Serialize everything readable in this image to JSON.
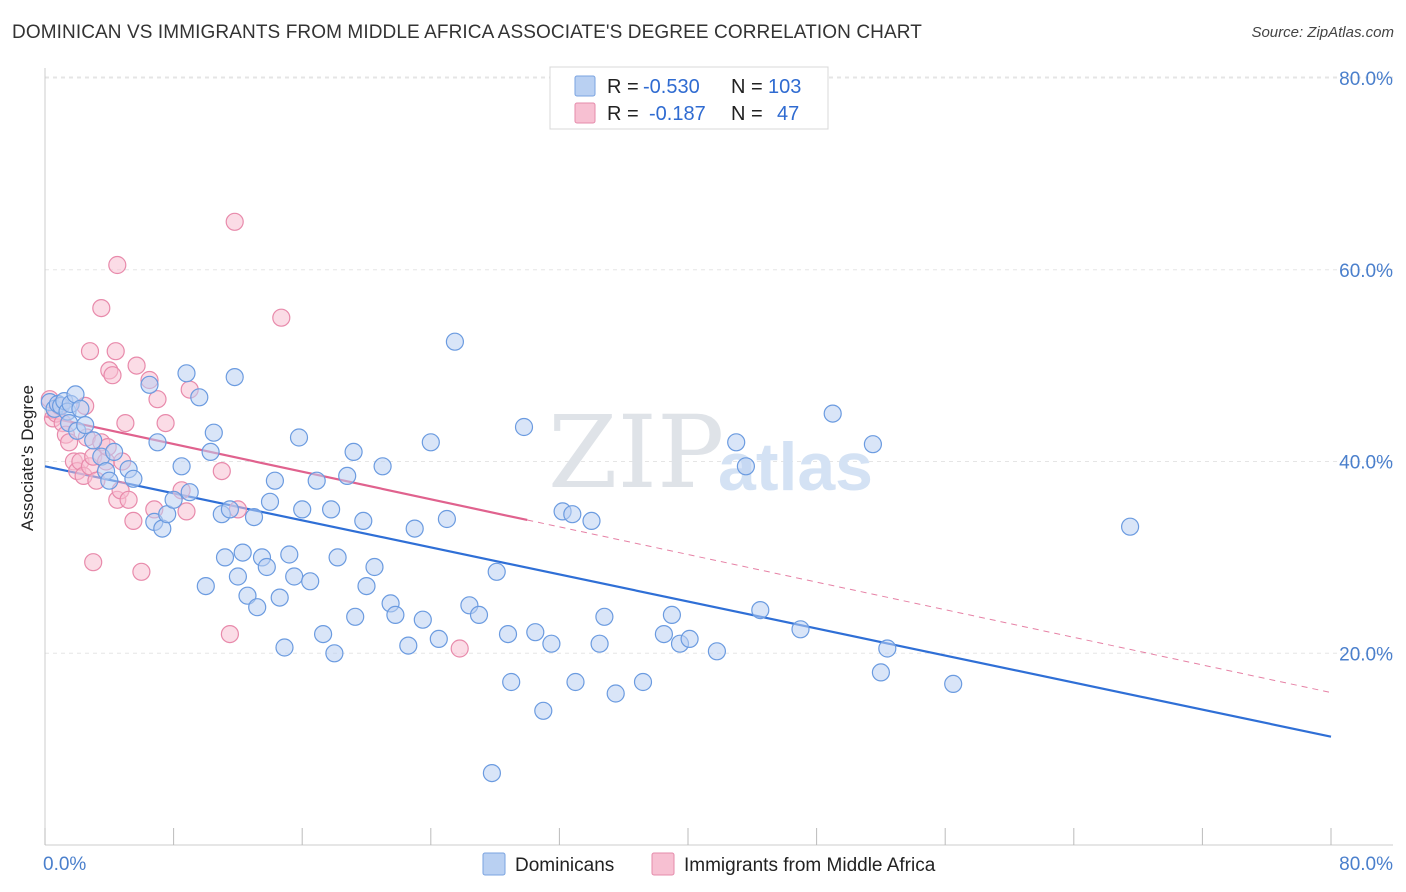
{
  "title": "DOMINICAN VS IMMIGRANTS FROM MIDDLE AFRICA ASSOCIATE'S DEGREE CORRELATION CHART",
  "source": "Source: ZipAtlas.com",
  "watermark": {
    "zip": "ZIP",
    "atlas": "atlas"
  },
  "colors": {
    "blue": "#2f6fd6",
    "blue_fill": "#b9d0f2",
    "pink": "#e0628e",
    "pink_fill": "#f7c0d2",
    "tick_text": "#4a7fcc",
    "grid": "#e5e5e5"
  },
  "legend_top": {
    "rows": [
      {
        "r_label": "R =",
        "r_value": "-0.530",
        "n_label": "N =",
        "n_value": "103"
      },
      {
        "r_label": "R =",
        "r_value": "-0.187",
        "n_label": "N =",
        "n_value": "47"
      }
    ]
  },
  "legend_bottom": [
    "Dominicans",
    "Immigrants from Middle Africa"
  ],
  "chart_data": {
    "type": "scatter",
    "title": "DOMINICAN VS IMMIGRANTS FROM MIDDLE AFRICA ASSOCIATE'S DEGREE CORRELATION CHART",
    "xlabel": "",
    "ylabel": "Associate's Degree",
    "xlim": [
      0,
      80
    ],
    "ylim": [
      0,
      80
    ],
    "x_tick_labels": [
      "0.0%",
      "80.0%"
    ],
    "y_tick_labels": [
      "20.0%",
      "40.0%",
      "60.0%",
      "80.0%"
    ],
    "y_ticks": [
      20,
      40,
      60,
      80
    ],
    "grid": true,
    "legend_position": "top-center",
    "series": [
      {
        "name": "Dominicans",
        "color": "#2f6fd6",
        "R": -0.53,
        "N": 103,
        "trend": {
          "x": [
            0,
            80
          ],
          "y": [
            39.5,
            11.3
          ],
          "style": "solid"
        },
        "points": [
          [
            0.3,
            46.2
          ],
          [
            0.6,
            45.5
          ],
          [
            0.8,
            46.0
          ],
          [
            1.0,
            45.8
          ],
          [
            1.2,
            46.3
          ],
          [
            1.4,
            45.2
          ],
          [
            1.6,
            46.0
          ],
          [
            1.9,
            47.0
          ],
          [
            2.2,
            45.5
          ],
          [
            1.5,
            44.0
          ],
          [
            2.0,
            43.2
          ],
          [
            2.5,
            43.8
          ],
          [
            3.0,
            42.2
          ],
          [
            3.5,
            40.5
          ],
          [
            3.8,
            39.0
          ],
          [
            4.0,
            38.0
          ],
          [
            4.3,
            41.0
          ],
          [
            5.2,
            39.2
          ],
          [
            5.5,
            38.2
          ],
          [
            6.5,
            48.0
          ],
          [
            6.8,
            33.7
          ],
          [
            7.0,
            42.0
          ],
          [
            7.3,
            33.0
          ],
          [
            7.6,
            34.5
          ],
          [
            8.0,
            36.0
          ],
          [
            8.5,
            39.5
          ],
          [
            8.8,
            49.2
          ],
          [
            9.0,
            36.8
          ],
          [
            9.6,
            46.7
          ],
          [
            10.3,
            41.0
          ],
          [
            10.5,
            43.0
          ],
          [
            10.0,
            27.0
          ],
          [
            11.0,
            34.5
          ],
          [
            11.2,
            30.0
          ],
          [
            11.5,
            35.0
          ],
          [
            11.8,
            48.8
          ],
          [
            12.0,
            28.0
          ],
          [
            12.3,
            30.5
          ],
          [
            12.6,
            26.0
          ],
          [
            13.0,
            34.2
          ],
          [
            13.2,
            24.8
          ],
          [
            13.5,
            30.0
          ],
          [
            13.8,
            29.0
          ],
          [
            14.0,
            35.8
          ],
          [
            14.3,
            38.0
          ],
          [
            14.6,
            25.8
          ],
          [
            14.9,
            20.6
          ],
          [
            15.2,
            30.3
          ],
          [
            15.5,
            28.0
          ],
          [
            15.8,
            42.5
          ],
          [
            16.0,
            35.0
          ],
          [
            16.5,
            27.5
          ],
          [
            16.9,
            38.0
          ],
          [
            17.3,
            22.0
          ],
          [
            17.8,
            35.0
          ],
          [
            18.0,
            20.0
          ],
          [
            18.2,
            30.0
          ],
          [
            18.8,
            38.5
          ],
          [
            19.2,
            41.0
          ],
          [
            19.3,
            23.8
          ],
          [
            19.8,
            33.8
          ],
          [
            20.0,
            27.0
          ],
          [
            20.5,
            29.0
          ],
          [
            21.0,
            39.5
          ],
          [
            21.5,
            25.2
          ],
          [
            21.8,
            24.0
          ],
          [
            22.6,
            20.8
          ],
          [
            23.0,
            33.0
          ],
          [
            23.5,
            23.5
          ],
          [
            24.0,
            42.0
          ],
          [
            24.5,
            21.5
          ],
          [
            25.0,
            34.0
          ],
          [
            25.5,
            52.5
          ],
          [
            26.4,
            25.0
          ],
          [
            27.0,
            24.0
          ],
          [
            27.8,
            7.5
          ],
          [
            28.1,
            28.5
          ],
          [
            28.8,
            22.0
          ],
          [
            29.0,
            17.0
          ],
          [
            29.8,
            43.6
          ],
          [
            30.5,
            22.2
          ],
          [
            31.0,
            14.0
          ],
          [
            31.5,
            21.0
          ],
          [
            32.2,
            34.8
          ],
          [
            32.8,
            34.5
          ],
          [
            33.0,
            17.0
          ],
          [
            34.0,
            33.8
          ],
          [
            34.5,
            21.0
          ],
          [
            34.8,
            23.8
          ],
          [
            35.5,
            15.8
          ],
          [
            37.2,
            17.0
          ],
          [
            38.5,
            22.0
          ],
          [
            39.0,
            24.0
          ],
          [
            39.5,
            21.0
          ],
          [
            40.1,
            21.5
          ],
          [
            41.8,
            20.2
          ],
          [
            43.0,
            42.0
          ],
          [
            43.6,
            39.5
          ],
          [
            44.5,
            24.5
          ],
          [
            47.0,
            22.5
          ],
          [
            49.0,
            45.0
          ],
          [
            51.5,
            41.8
          ],
          [
            52.0,
            18.0
          ],
          [
            52.4,
            20.5
          ],
          [
            56.5,
            16.8
          ],
          [
            67.5,
            33.2
          ]
        ]
      },
      {
        "name": "Immigrants from Middle Africa",
        "color": "#e0628e",
        "R": -0.187,
        "N": 47,
        "trend": {
          "x": [
            0,
            80
          ],
          "y": [
            44.7,
            15.9
          ],
          "style": "solid-then-dashed",
          "solid_until_x": 30
        },
        "points": [
          [
            0.3,
            46.5
          ],
          [
            0.5,
            44.5
          ],
          [
            0.7,
            45.0
          ],
          [
            0.9,
            45.8
          ],
          [
            1.1,
            44.0
          ],
          [
            1.3,
            42.8
          ],
          [
            1.5,
            42.0
          ],
          [
            1.8,
            40.0
          ],
          [
            2.0,
            39.0
          ],
          [
            2.2,
            40.0
          ],
          [
            2.4,
            38.5
          ],
          [
            2.5,
            45.8
          ],
          [
            2.6,
            42.5
          ],
          [
            2.8,
            39.5
          ],
          [
            3.0,
            40.5
          ],
          [
            2.8,
            51.5
          ],
          [
            3.2,
            38.0
          ],
          [
            3.5,
            42.0
          ],
          [
            3.8,
            40.0
          ],
          [
            3.9,
            41.5
          ],
          [
            4.0,
            49.5
          ],
          [
            4.2,
            49.0
          ],
          [
            4.4,
            51.5
          ],
          [
            4.5,
            36.0
          ],
          [
            4.7,
            37.0
          ],
          [
            4.8,
            40.0
          ],
          [
            5.0,
            44.0
          ],
          [
            5.2,
            36.0
          ],
          [
            5.5,
            33.8
          ],
          [
            5.7,
            50.0
          ],
          [
            6.0,
            28.5
          ],
          [
            6.5,
            48.5
          ],
          [
            7.0,
            46.5
          ],
          [
            7.5,
            44.0
          ],
          [
            3.5,
            56.0
          ],
          [
            4.5,
            60.5
          ],
          [
            8.5,
            37.0
          ],
          [
            8.8,
            34.8
          ],
          [
            9.0,
            47.5
          ],
          [
            3.0,
            29.5
          ],
          [
            6.8,
            35.0
          ],
          [
            11.0,
            39.0
          ],
          [
            11.8,
            65.0
          ],
          [
            11.5,
            22.0
          ],
          [
            12.0,
            35.0
          ],
          [
            14.7,
            55.0
          ],
          [
            25.8,
            20.5
          ]
        ]
      }
    ]
  }
}
